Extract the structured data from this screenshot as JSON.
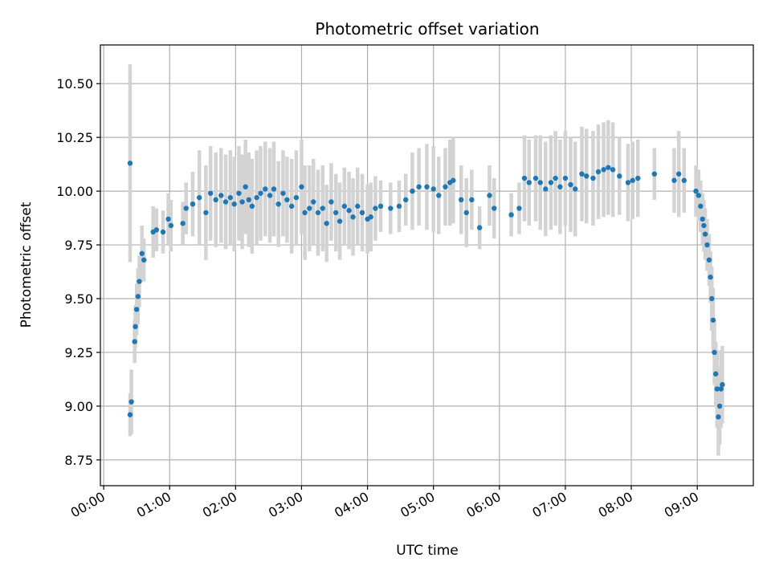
{
  "chart_data": {
    "type": "scatter",
    "title": "Photometric offset variation",
    "xlabel": "UTC time",
    "ylabel": "Photometric offset",
    "x_unit": "hours (UTC)",
    "xlim": [
      -0.05,
      9.85
    ],
    "ylim": [
      8.63,
      10.68
    ],
    "yticks": [
      8.75,
      9.0,
      9.25,
      9.5,
      9.75,
      10.0,
      10.25,
      10.5
    ],
    "ytick_labels": [
      "8.75",
      "9.00",
      "9.25",
      "9.50",
      "9.75",
      "10.00",
      "10.25",
      "10.50"
    ],
    "xticks": [
      0,
      1,
      2,
      3,
      4,
      5,
      6,
      7,
      8,
      9
    ],
    "xtick_labels": [
      "00:00",
      "01:00",
      "02:00",
      "03:00",
      "04:00",
      "05:00",
      "06:00",
      "07:00",
      "08:00",
      "09:00"
    ],
    "grid": true,
    "colors": {
      "marker": "#1f77b4",
      "errorbar": "#d3d3d3",
      "grid": "#b0b0b0"
    },
    "series": [
      {
        "points": [
          [
            0.4,
            10.13,
            0.46
          ],
          [
            0.4,
            8.96,
            0.1
          ],
          [
            0.42,
            9.02,
            0.15
          ],
          [
            0.47,
            9.3,
            0.1
          ],
          [
            0.48,
            9.37,
            0.1
          ],
          [
            0.5,
            9.45,
            0.12
          ],
          [
            0.52,
            9.51,
            0.13
          ],
          [
            0.54,
            9.58,
            0.12
          ],
          [
            0.58,
            9.71,
            0.13
          ],
          [
            0.61,
            9.68,
            0.1
          ],
          [
            0.75,
            9.81,
            0.12
          ],
          [
            0.8,
            9.82,
            0.1
          ],
          [
            0.9,
            9.81,
            0.1
          ],
          [
            0.98,
            9.87,
            0.12
          ],
          [
            1.02,
            9.84,
            0.12
          ],
          [
            1.2,
            9.85,
            0.1
          ],
          [
            1.25,
            9.92,
            0.12
          ],
          [
            1.35,
            9.94,
            0.15
          ],
          [
            1.45,
            9.97,
            0.22
          ],
          [
            1.55,
            9.9,
            0.22
          ],
          [
            1.62,
            9.99,
            0.22
          ],
          [
            1.7,
            9.96,
            0.22
          ],
          [
            1.78,
            9.98,
            0.22
          ],
          [
            1.85,
            9.95,
            0.22
          ],
          [
            1.92,
            9.97,
            0.22
          ],
          [
            1.98,
            9.94,
            0.22
          ],
          [
            2.05,
            9.99,
            0.22
          ],
          [
            2.1,
            9.95,
            0.22
          ],
          [
            2.15,
            10.02,
            0.22
          ],
          [
            2.2,
            9.96,
            0.22
          ],
          [
            2.25,
            9.93,
            0.22
          ],
          [
            2.32,
            9.97,
            0.22
          ],
          [
            2.38,
            9.99,
            0.22
          ],
          [
            2.45,
            10.01,
            0.22
          ],
          [
            2.52,
            9.98,
            0.22
          ],
          [
            2.58,
            10.01,
            0.22
          ],
          [
            2.65,
            9.94,
            0.2
          ],
          [
            2.72,
            9.99,
            0.2
          ],
          [
            2.78,
            9.96,
            0.2
          ],
          [
            2.85,
            9.93,
            0.22
          ],
          [
            2.92,
            9.97,
            0.22
          ],
          [
            3.0,
            10.02,
            0.22
          ],
          [
            3.05,
            9.9,
            0.22
          ],
          [
            3.12,
            9.92,
            0.2
          ],
          [
            3.18,
            9.95,
            0.2
          ],
          [
            3.25,
            9.9,
            0.2
          ],
          [
            3.32,
            9.92,
            0.2
          ],
          [
            3.38,
            9.85,
            0.18
          ],
          [
            3.45,
            9.95,
            0.18
          ],
          [
            3.52,
            9.9,
            0.18
          ],
          [
            3.58,
            9.86,
            0.18
          ],
          [
            3.65,
            9.93,
            0.18
          ],
          [
            3.72,
            9.91,
            0.18
          ],
          [
            3.78,
            9.88,
            0.18
          ],
          [
            3.85,
            9.93,
            0.18
          ],
          [
            3.92,
            9.9,
            0.18
          ],
          [
            4.0,
            9.87,
            0.16
          ],
          [
            4.05,
            9.88,
            0.16
          ],
          [
            4.12,
            9.92,
            0.15
          ],
          [
            4.2,
            9.93,
            0.12
          ],
          [
            4.35,
            9.92,
            0.12
          ],
          [
            4.48,
            9.93,
            0.12
          ],
          [
            4.58,
            9.96,
            0.12
          ],
          [
            4.68,
            10.0,
            0.18
          ],
          [
            4.78,
            10.02,
            0.18
          ],
          [
            4.9,
            10.02,
            0.2
          ],
          [
            5.0,
            10.01,
            0.2
          ],
          [
            5.08,
            9.98,
            0.18
          ],
          [
            5.18,
            10.02,
            0.18
          ],
          [
            5.25,
            10.04,
            0.2
          ],
          [
            5.3,
            10.05,
            0.2
          ],
          [
            5.42,
            9.96,
            0.16
          ],
          [
            5.5,
            9.9,
            0.16
          ],
          [
            5.58,
            9.96,
            0.14
          ],
          [
            5.7,
            9.83,
            0.1
          ],
          [
            5.85,
            9.98,
            0.14
          ],
          [
            5.92,
            9.92,
            0.14
          ],
          [
            6.18,
            9.89,
            0.1
          ],
          [
            6.3,
            9.92,
            0.12
          ],
          [
            6.38,
            10.06,
            0.2
          ],
          [
            6.45,
            10.04,
            0.2
          ],
          [
            6.55,
            10.06,
            0.2
          ],
          [
            6.62,
            10.04,
            0.22
          ],
          [
            6.7,
            10.01,
            0.22
          ],
          [
            6.78,
            10.04,
            0.22
          ],
          [
            6.85,
            10.06,
            0.22
          ],
          [
            6.92,
            10.02,
            0.22
          ],
          [
            7.0,
            10.06,
            0.22
          ],
          [
            7.08,
            10.03,
            0.22
          ],
          [
            7.15,
            10.01,
            0.22
          ],
          [
            7.25,
            10.08,
            0.22
          ],
          [
            7.32,
            10.07,
            0.22
          ],
          [
            7.42,
            10.06,
            0.22
          ],
          [
            7.5,
            10.09,
            0.22
          ],
          [
            7.58,
            10.1,
            0.22
          ],
          [
            7.65,
            10.11,
            0.22
          ],
          [
            7.72,
            10.1,
            0.22
          ],
          [
            7.82,
            10.07,
            0.18
          ],
          [
            7.95,
            10.04,
            0.18
          ],
          [
            8.02,
            10.05,
            0.18
          ],
          [
            8.1,
            10.06,
            0.18
          ],
          [
            8.35,
            10.08,
            0.12
          ],
          [
            8.65,
            10.05,
            0.15
          ],
          [
            8.72,
            10.08,
            0.2
          ],
          [
            8.8,
            10.05,
            0.15
          ],
          [
            8.98,
            10.0,
            0.12
          ],
          [
            9.02,
            9.98,
            0.12
          ],
          [
            9.05,
            9.93,
            0.12
          ],
          [
            9.08,
            9.87,
            0.12
          ],
          [
            9.1,
            9.84,
            0.12
          ],
          [
            9.12,
            9.8,
            0.12
          ],
          [
            9.15,
            9.75,
            0.12
          ],
          [
            9.18,
            9.68,
            0.12
          ],
          [
            9.2,
            9.6,
            0.12
          ],
          [
            9.22,
            9.5,
            0.15
          ],
          [
            9.24,
            9.4,
            0.15
          ],
          [
            9.26,
            9.25,
            0.15
          ],
          [
            9.28,
            9.15,
            0.15
          ],
          [
            9.3,
            9.08,
            0.18
          ],
          [
            9.32,
            8.95,
            0.18
          ],
          [
            9.34,
            9.0,
            0.18
          ],
          [
            9.36,
            9.08,
            0.18
          ],
          [
            9.38,
            9.1,
            0.18
          ]
        ]
      }
    ]
  }
}
